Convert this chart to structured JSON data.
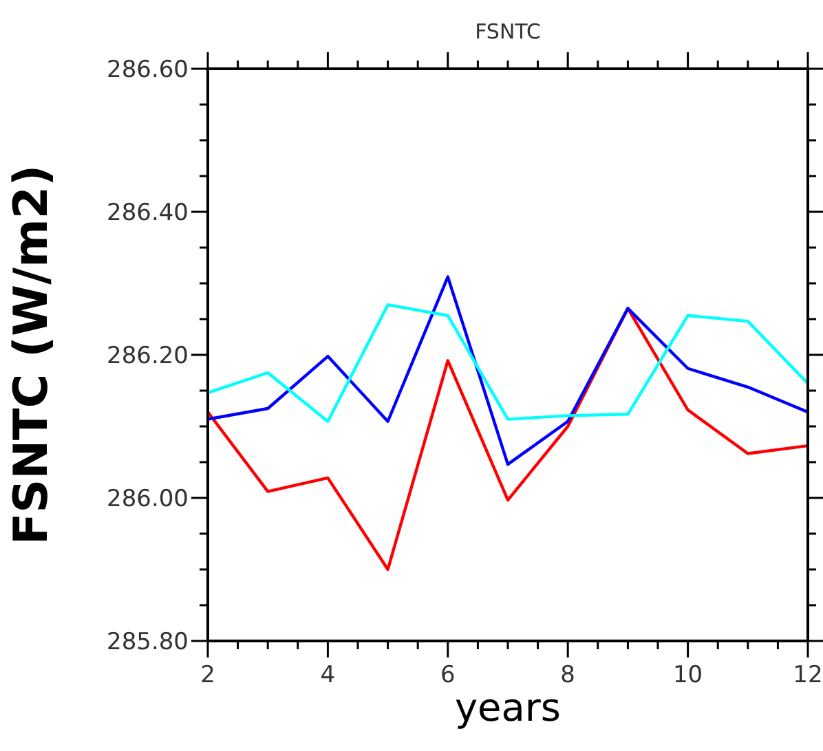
{
  "chart_data": {
    "type": "line",
    "title": "FSNTC",
    "xlabel": "years",
    "ylabel": "FSNTC (W/m2)",
    "x": [
      2,
      3,
      4,
      5,
      6,
      7,
      8,
      9,
      10,
      11,
      12
    ],
    "series": [
      {
        "color": "#ff0000",
        "values": [
          286.12,
          286.009,
          286.028,
          285.9,
          286.192,
          285.997,
          286.1,
          286.265,
          286.123,
          286.062,
          286.073
        ]
      },
      {
        "color": "#0000ff",
        "values": [
          286.11,
          286.125,
          286.198,
          286.107,
          286.309,
          286.047,
          286.107,
          286.265,
          286.181,
          286.155,
          286.12
        ]
      },
      {
        "color": "#00ffff",
        "values": [
          286.147,
          286.175,
          286.107,
          286.27,
          286.255,
          286.11,
          286.115,
          286.117,
          286.255,
          286.247,
          286.16
        ]
      }
    ],
    "xlim": [
      2,
      12
    ],
    "xticks": [
      2,
      {
        "value": 2.5,
        "label": null
      },
      {
        "value": 3,
        "label": null
      },
      {
        "value": 3.5,
        "label": null
      },
      4,
      {
        "value": 4.5,
        "label": null
      },
      {
        "value": 5,
        "label": null
      },
      {
        "value": 5.5,
        "label": null
      },
      6,
      {
        "value": 6.5,
        "label": null
      },
      {
        "value": 7,
        "label": null
      },
      {
        "value": 7.5,
        "label": null
      },
      8,
      {
        "value": 8.5,
        "label": null
      },
      {
        "value": 9,
        "label": null
      },
      {
        "value": 9.5,
        "label": null
      },
      10,
      {
        "value": 10.5,
        "label": null
      },
      {
        "value": 11,
        "label": null
      },
      {
        "value": 11.5,
        "label": null
      },
      12
    ],
    "ylim": [
      285.8,
      286.6
    ],
    "yticks": [
      {
        "value": 285.8,
        "label": "285.80"
      },
      {
        "value": 285.85,
        "label": null
      },
      {
        "value": 285.9,
        "label": null
      },
      {
        "value": 285.95,
        "label": null
      },
      {
        "value": 286.0,
        "label": "286.00"
      },
      {
        "value": 286.05,
        "label": null
      },
      {
        "value": 286.1,
        "label": null
      },
      {
        "value": 286.15,
        "label": null
      },
      {
        "value": 286.2,
        "label": "286.20"
      },
      {
        "value": 286.25,
        "label": null
      },
      {
        "value": 286.3,
        "label": null
      },
      {
        "value": 286.35,
        "label": null
      },
      {
        "value": 286.4,
        "label": "286.40"
      },
      {
        "value": 286.45,
        "label": null
      },
      {
        "value": 286.5,
        "label": null
      },
      {
        "value": 286.55,
        "label": null
      },
      {
        "value": 286.6,
        "label": "286.60"
      }
    ],
    "grid": false,
    "legend": false,
    "marker": "none",
    "line_style": "solid"
  }
}
